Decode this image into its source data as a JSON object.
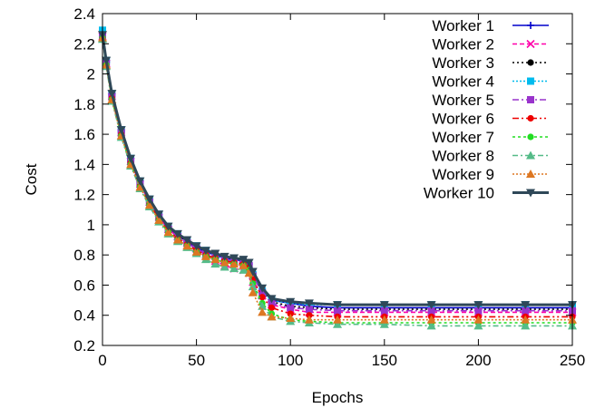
{
  "chart_data": {
    "type": "line",
    "title": "",
    "xlabel": "Epochs",
    "ylabel": "Cost",
    "xlim": [
      0,
      250
    ],
    "ylim": [
      0.2,
      2.4
    ],
    "xticks": [
      0,
      50,
      100,
      150,
      200,
      250
    ],
    "yticks": [
      0.2,
      0.4,
      0.6,
      0.8,
      1,
      1.2,
      1.4,
      1.6,
      1.8,
      2,
      2.2,
      2.4
    ],
    "x_tick_labels": [
      "0",
      "50",
      "100",
      "150",
      "200",
      "250"
    ],
    "y_tick_labels": [
      "0.2",
      "0.4",
      "0.6",
      "0.8",
      "1",
      "1.2",
      "1.4",
      "1.6",
      "1.8",
      "2",
      "2.2",
      "2.4"
    ],
    "grid": false,
    "legend_position": "top-right",
    "x": [
      0,
      2,
      5,
      10,
      15,
      20,
      25,
      30,
      35,
      40,
      45,
      50,
      55,
      60,
      65,
      70,
      75,
      78,
      80,
      85,
      90,
      100,
      110,
      125,
      150,
      175,
      200,
      225,
      250
    ],
    "series": [
      {
        "name": "Worker 1",
        "color": "#0000cc",
        "marker": "plus",
        "values": [
          2.26,
          2.08,
          1.86,
          1.62,
          1.43,
          1.28,
          1.16,
          1.06,
          0.98,
          0.93,
          0.89,
          0.85,
          0.82,
          0.8,
          0.78,
          0.77,
          0.76,
          0.74,
          0.68,
          0.57,
          0.5,
          0.48,
          0.46,
          0.45,
          0.45,
          0.45,
          0.45,
          0.45,
          0.45
        ]
      },
      {
        "name": "Worker 2",
        "color": "#ff00aa",
        "marker": "x",
        "values": [
          2.25,
          2.07,
          1.85,
          1.61,
          1.42,
          1.27,
          1.15,
          1.05,
          0.97,
          0.92,
          0.88,
          0.84,
          0.8,
          0.76,
          0.73,
          0.71,
          0.7,
          0.68,
          0.62,
          0.53,
          0.47,
          0.44,
          0.42,
          0.42,
          0.42,
          0.42,
          0.42,
          0.42,
          0.42
        ]
      },
      {
        "name": "Worker 3",
        "color": "#000000",
        "marker": "circle",
        "values": [
          2.25,
          2.08,
          1.86,
          1.62,
          1.43,
          1.28,
          1.16,
          1.06,
          0.98,
          0.93,
          0.89,
          0.85,
          0.83,
          0.81,
          0.79,
          0.78,
          0.77,
          0.75,
          0.68,
          0.57,
          0.49,
          0.46,
          0.45,
          0.44,
          0.44,
          0.44,
          0.44,
          0.44,
          0.44
        ]
      },
      {
        "name": "Worker 4",
        "color": "#00bbee",
        "marker": "square",
        "values": [
          2.29,
          2.09,
          1.87,
          1.63,
          1.44,
          1.29,
          1.17,
          1.07,
          0.99,
          0.94,
          0.9,
          0.86,
          0.83,
          0.79,
          0.77,
          0.76,
          0.75,
          0.73,
          0.67,
          0.56,
          0.5,
          0.48,
          0.47,
          0.47,
          0.47,
          0.47,
          0.47,
          0.47,
          0.47
        ]
      },
      {
        "name": "Worker 5",
        "color": "#9933cc",
        "marker": "square",
        "values": [
          2.25,
          2.07,
          1.85,
          1.61,
          1.42,
          1.27,
          1.15,
          1.05,
          0.97,
          0.92,
          0.88,
          0.84,
          0.81,
          0.79,
          0.77,
          0.76,
          0.75,
          0.73,
          0.66,
          0.55,
          0.48,
          0.45,
          0.44,
          0.43,
          0.43,
          0.43,
          0.43,
          0.43,
          0.43
        ]
      },
      {
        "name": "Worker 6",
        "color": "#ee0000",
        "marker": "circle",
        "values": [
          2.24,
          2.06,
          1.84,
          1.6,
          1.41,
          1.26,
          1.14,
          1.04,
          0.96,
          0.91,
          0.87,
          0.83,
          0.8,
          0.78,
          0.76,
          0.75,
          0.74,
          0.72,
          0.64,
          0.52,
          0.45,
          0.41,
          0.4,
          0.39,
          0.39,
          0.39,
          0.39,
          0.39,
          0.39
        ]
      },
      {
        "name": "Worker 7",
        "color": "#22dd22",
        "marker": "circle",
        "values": [
          2.24,
          2.06,
          1.83,
          1.59,
          1.4,
          1.25,
          1.13,
          1.03,
          0.95,
          0.9,
          0.86,
          0.82,
          0.79,
          0.77,
          0.75,
          0.74,
          0.73,
          0.7,
          0.61,
          0.48,
          0.41,
          0.37,
          0.36,
          0.35,
          0.35,
          0.35,
          0.35,
          0.35,
          0.35
        ]
      },
      {
        "name": "Worker 8",
        "color": "#55bb88",
        "marker": "triangle",
        "values": [
          2.23,
          2.05,
          1.82,
          1.58,
          1.39,
          1.24,
          1.12,
          1.02,
          0.94,
          0.89,
          0.85,
          0.81,
          0.77,
          0.74,
          0.72,
          0.71,
          0.7,
          0.68,
          0.59,
          0.46,
          0.39,
          0.36,
          0.35,
          0.34,
          0.34,
          0.33,
          0.33,
          0.33,
          0.33
        ]
      },
      {
        "name": "Worker 9",
        "color": "#dd7722",
        "marker": "triangle",
        "values": [
          2.24,
          2.06,
          1.83,
          1.59,
          1.4,
          1.25,
          1.13,
          1.03,
          0.95,
          0.9,
          0.86,
          0.82,
          0.79,
          0.77,
          0.75,
          0.74,
          0.73,
          0.68,
          0.55,
          0.42,
          0.39,
          0.38,
          0.37,
          0.37,
          0.37,
          0.37,
          0.37,
          0.37,
          0.37
        ]
      },
      {
        "name": "Worker 10",
        "color": "#2f4858",
        "marker": "triangle-down",
        "values": [
          2.26,
          2.09,
          1.87,
          1.63,
          1.44,
          1.29,
          1.17,
          1.07,
          0.99,
          0.94,
          0.9,
          0.86,
          0.83,
          0.81,
          0.79,
          0.78,
          0.77,
          0.75,
          0.69,
          0.58,
          0.51,
          0.49,
          0.48,
          0.47,
          0.47,
          0.47,
          0.47,
          0.47,
          0.47
        ]
      }
    ]
  }
}
